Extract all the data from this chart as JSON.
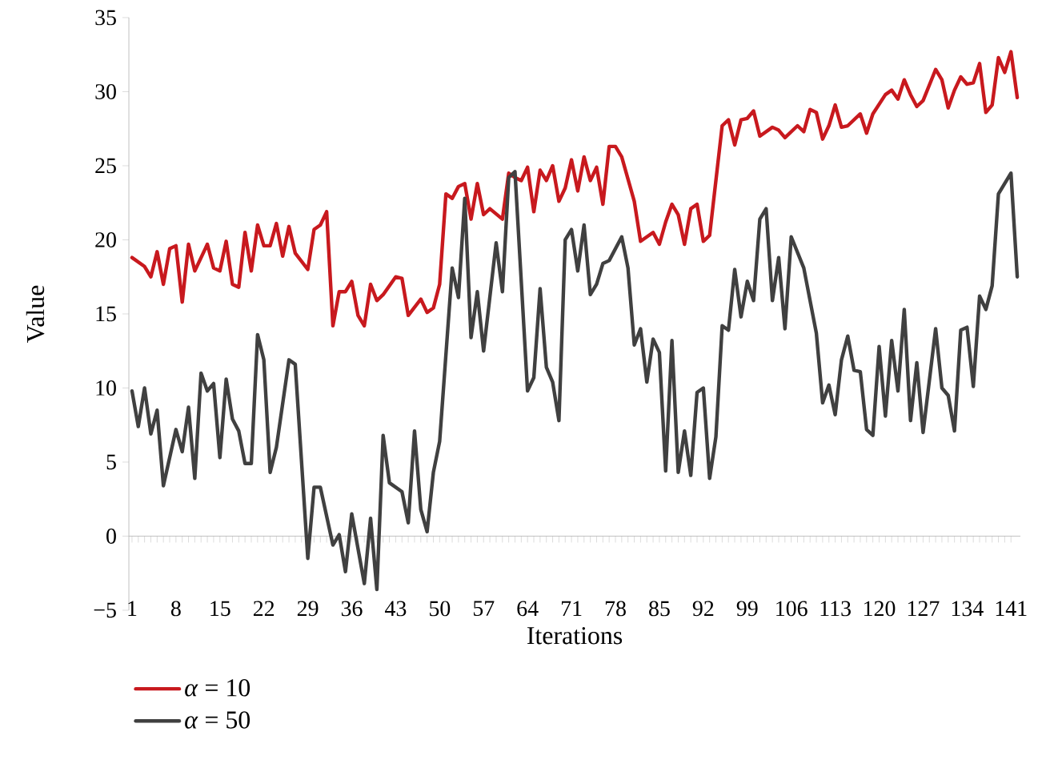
{
  "chart_data": {
    "type": "line",
    "xlabel": "Iterations",
    "ylabel": "Value",
    "xlim": [
      0.5,
      142.5
    ],
    "xticks": [
      1,
      8,
      15,
      22,
      29,
      36,
      43,
      50,
      57,
      64,
      71,
      78,
      85,
      92,
      99,
      106,
      113,
      120,
      127,
      134,
      141
    ],
    "ylim": [
      -5,
      35
    ],
    "yticks": [
      {
        "value": -5,
        "label": "−5"
      },
      0,
      5,
      10,
      15,
      20,
      25,
      30,
      35
    ],
    "legend": "bottom",
    "line_style": "solid",
    "series": [
      {
        "name": "*α* = 10",
        "color": "#c8191e",
        "x": [
          1,
          3,
          4,
          5,
          6,
          7,
          8,
          9,
          10,
          11,
          13,
          14,
          15,
          16,
          17,
          18,
          19,
          20,
          21,
          22,
          23,
          24,
          25,
          26,
          27,
          29,
          30,
          31,
          32,
          33,
          34,
          35,
          36,
          37,
          38,
          39,
          40,
          41,
          43,
          44,
          45,
          47,
          48,
          49,
          50,
          51,
          52,
          53,
          54,
          55,
          56,
          57,
          58,
          60,
          61,
          62,
          63,
          64,
          65,
          66,
          67,
          68,
          69,
          70,
          71,
          72,
          73,
          74,
          75,
          76,
          77,
          78,
          79,
          81,
          82,
          84,
          85,
          86,
          87,
          88,
          89,
          90,
          91,
          92,
          93,
          95,
          96,
          97,
          98,
          99,
          100,
          101,
          103,
          104,
          105,
          107,
          108,
          109,
          110,
          111,
          112,
          113,
          114,
          115,
          117,
          118,
          119,
          121,
          122,
          123,
          124,
          125,
          126,
          127,
          129,
          130,
          131,
          132,
          133,
          134,
          135,
          136,
          137,
          138,
          139,
          140,
          141,
          142
        ],
        "values": [
          18.8,
          18.2,
          17.5,
          19.2,
          17.0,
          19.4,
          19.6,
          15.8,
          19.7,
          17.9,
          19.7,
          18.1,
          17.9,
          19.9,
          17.0,
          16.8,
          20.5,
          17.9,
          21.0,
          19.6,
          19.6,
          21.1,
          18.9,
          20.9,
          19.1,
          18.0,
          20.7,
          21.0,
          21.9,
          14.2,
          16.5,
          16.5,
          17.2,
          14.9,
          14.2,
          17.0,
          15.9,
          16.3,
          17.5,
          17.4,
          14.9,
          16.0,
          15.1,
          15.4,
          17.0,
          23.1,
          22.8,
          23.6,
          23.8,
          21.4,
          23.8,
          21.7,
          22.1,
          21.4,
          24.5,
          24.2,
          24.0,
          24.9,
          21.9,
          24.7,
          24.0,
          25.0,
          22.6,
          23.5,
          25.4,
          23.3,
          25.6,
          24.0,
          24.9,
          22.4,
          26.3,
          26.3,
          25.6,
          22.6,
          19.9,
          20.5,
          19.7,
          21.2,
          22.4,
          21.7,
          19.7,
          22.1,
          22.4,
          19.9,
          20.3,
          27.7,
          28.1,
          26.4,
          28.1,
          28.2,
          28.7,
          27.0,
          27.6,
          27.4,
          26.9,
          27.7,
          27.3,
          28.8,
          28.6,
          26.8,
          27.7,
          29.1,
          27.6,
          27.7,
          28.5,
          27.2,
          28.5,
          29.8,
          30.1,
          29.5,
          30.8,
          29.8,
          29.0,
          29.4,
          31.5,
          30.8,
          28.9,
          30.1,
          31.0,
          30.5,
          30.6,
          31.9,
          28.6,
          29.1,
          32.3,
          31.3,
          32.7,
          29.6
        ]
      },
      {
        "name": "*α* = 50",
        "color": "#404040",
        "x": [
          1,
          2,
          3,
          4,
          5,
          6,
          8,
          9,
          10,
          11,
          12,
          13,
          14,
          15,
          16,
          17,
          18,
          19,
          20,
          21,
          22,
          23,
          24,
          26,
          27,
          29,
          30,
          31,
          33,
          34,
          35,
          36,
          38,
          39,
          40,
          41,
          42,
          44,
          45,
          46,
          47,
          48,
          49,
          50,
          52,
          53,
          54,
          55,
          56,
          57,
          59,
          60,
          61,
          62,
          64,
          65,
          66,
          67,
          68,
          69,
          70,
          71,
          72,
          73,
          74,
          75,
          76,
          77,
          79,
          80,
          81,
          82,
          83,
          84,
          85,
          86,
          87,
          88,
          89,
          90,
          91,
          92,
          93,
          94,
          95,
          96,
          97,
          98,
          99,
          100,
          101,
          102,
          103,
          104,
          105,
          106,
          108,
          110,
          111,
          112,
          113,
          114,
          115,
          116,
          117,
          118,
          119,
          120,
          121,
          122,
          123,
          124,
          125,
          126,
          127,
          129,
          130,
          131,
          132,
          133,
          134,
          135,
          136,
          137,
          138,
          139,
          141,
          142
        ],
        "values": [
          9.8,
          7.4,
          10.0,
          6.9,
          8.5,
          3.4,
          7.2,
          5.7,
          8.7,
          3.9,
          11.0,
          9.8,
          10.3,
          5.3,
          10.6,
          7.9,
          7.1,
          4.9,
          4.9,
          13.6,
          11.9,
          4.3,
          6.0,
          11.9,
          11.6,
          -1.5,
          3.3,
          3.3,
          -0.6,
          0.1,
          -2.4,
          1.5,
          -3.2,
          1.2,
          -3.6,
          6.8,
          3.6,
          3.0,
          0.9,
          7.1,
          1.8,
          0.3,
          4.3,
          6.4,
          18.1,
          16.1,
          22.8,
          13.4,
          16.5,
          12.5,
          19.8,
          16.5,
          24.2,
          24.6,
          9.8,
          10.7,
          16.7,
          11.4,
          10.4,
          7.8,
          20.0,
          20.7,
          17.9,
          21.0,
          16.3,
          17.0,
          18.4,
          18.6,
          20.2,
          18.1,
          12.9,
          14.0,
          10.4,
          13.3,
          12.4,
          4.4,
          13.2,
          4.3,
          7.1,
          4.1,
          9.7,
          10.0,
          3.9,
          6.7,
          14.2,
          13.9,
          18.0,
          14.8,
          17.2,
          15.9,
          21.4,
          22.1,
          15.9,
          18.8,
          14.0,
          20.2,
          18.1,
          13.7,
          9.0,
          10.2,
          8.2,
          11.9,
          13.5,
          11.2,
          11.1,
          7.2,
          6.8,
          12.8,
          8.1,
          13.2,
          9.8,
          15.3,
          7.8,
          11.7,
          7.0,
          14.0,
          10.0,
          9.5,
          7.1,
          13.9,
          14.1,
          10.1,
          16.2,
          15.3,
          16.9,
          23.1,
          24.5,
          17.5
        ]
      }
    ]
  }
}
